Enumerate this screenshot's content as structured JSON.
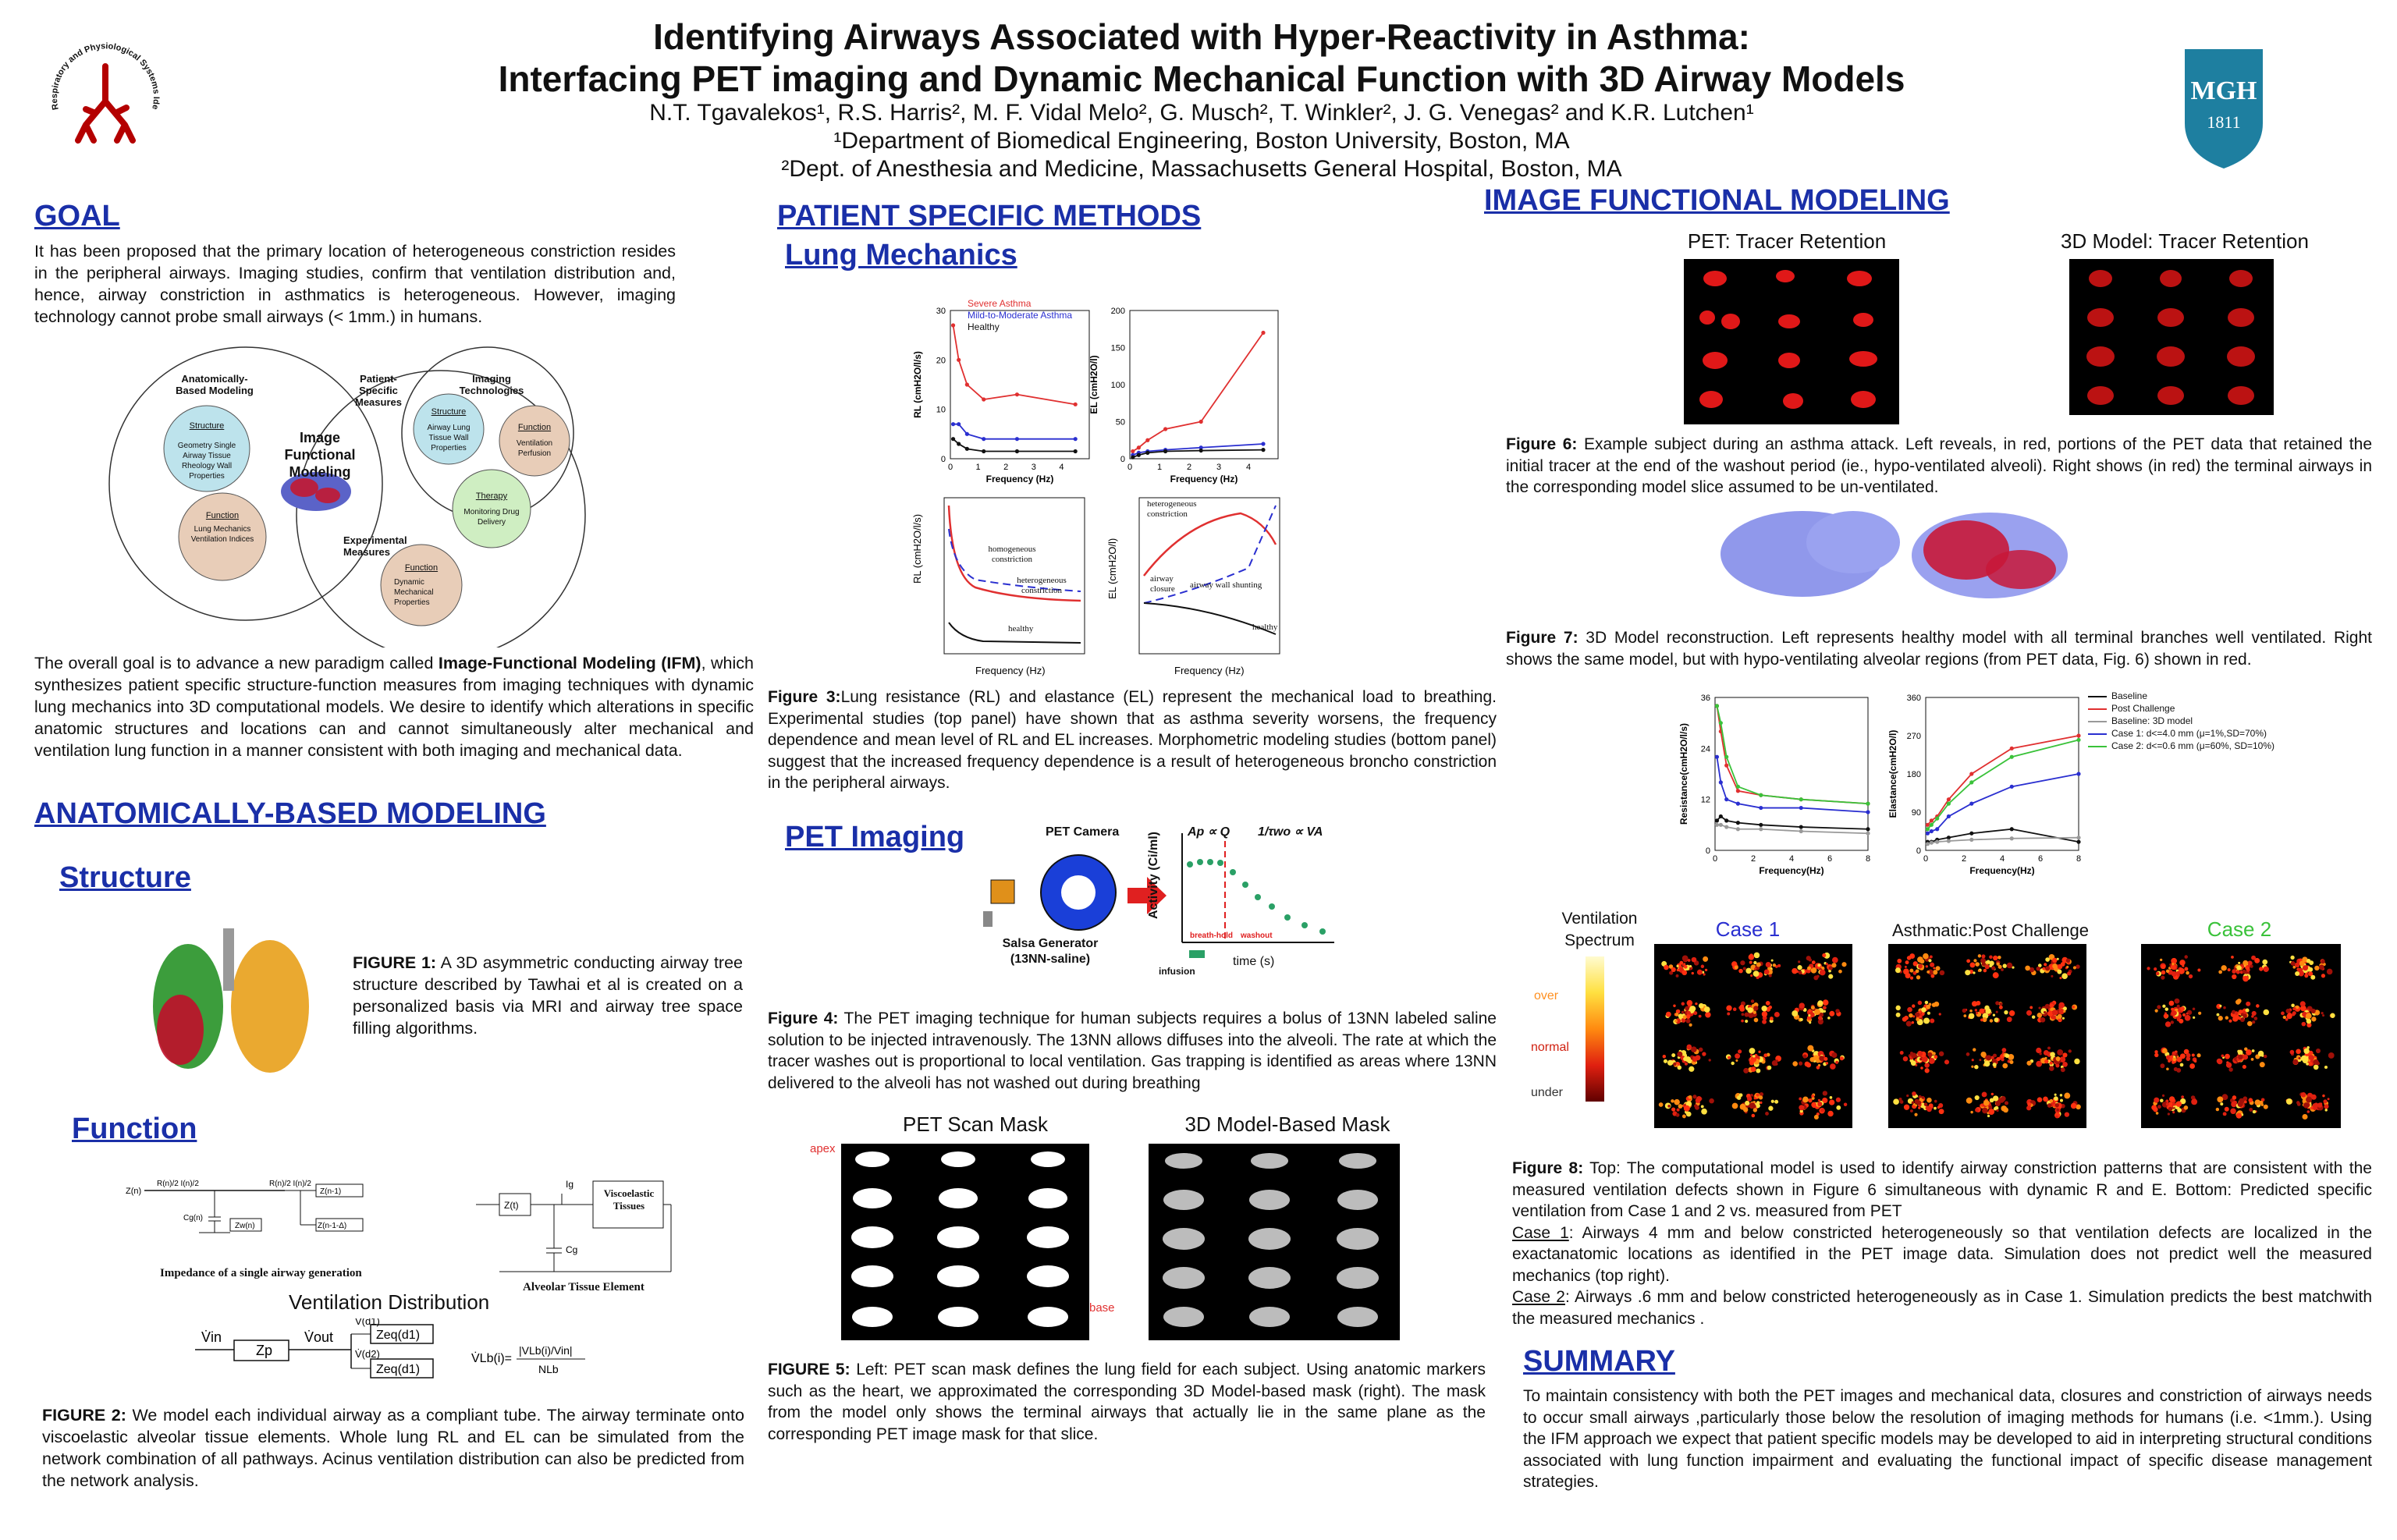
{
  "header": {
    "title_line1": "Identifying Airways Associated with Hyper-Reactivity in Asthma:",
    "title_line2": "Interfacing PET imaging and Dynamic Mechanical Function with 3D Airway Models",
    "authors": "N.T. Tgavalekos¹, R.S. Harris², M. F. Vidal Melo², G. Musch², T. Winkler², J. G. Venegas² and K.R. Lutchen¹",
    "affil1": "¹Department of Biomedical Engineering, Boston University, Boston, MA",
    "affil2": "²Dept. of Anesthesia and Medicine, Massachusetts General Hospital, Boston, MA",
    "left_logo_text": "Respiratory and Physiological Systems Identification Laboratory",
    "mgh_text": "MGH",
    "mgh_year": "1811"
  },
  "goal": {
    "heading": "GOAL",
    "p1": "It has been proposed that the primary location of heterogeneous constriction resides in the peripheral airways.   Imaging studies, confirm that ventilation distribution and, hence, airway constriction in asthmatics is heterogeneous. However, imaging technology cannot probe small airways (< 1mm.) in humans.",
    "venn": {
      "anat": "Anatomically-Based Modeling",
      "patient": "Patient-Specific Measures",
      "imaging": "Imaging Technologies",
      "experimental": "Experimental Measures",
      "center": "Image Functional Modeling",
      "structure_t": "Structure",
      "structure_b": "Geometry Single Airway Tissue Rheology Wall Properties",
      "function_t": "Function",
      "function_b": "Lung Mechanics Ventilation  Indices",
      "istructure_t": "Structure",
      "istructure_b": "Airway Lung Tissue Wall Properties",
      "ifunction_t": "Function",
      "ifunction_b": "Ventilation Perfusion",
      "therapy_t": "Therapy",
      "therapy_b": "Monitoring Drug Delivery",
      "efunction_t": "Function",
      "efunction_b": "Dynamic Mechanical Properties"
    },
    "p2_pre": "The overall goal is to advance a new paradigm called ",
    "p2_bold": "Image-Functional Modeling (IFM)",
    "p2_post": ", which synthesizes patient specific structure-function measures from imaging techniques with dynamic lung mechanics into 3D computational models. We desire to identify  which alterations in specific anatomic structures and locations can and cannot simultaneously alter mechanical and ventilation lung function in a manner consistent with both imaging and mechanical data."
  },
  "anat": {
    "heading": "ANATOMICALLY-BASED MODELING",
    "structure": "Structure",
    "fig1_bold": "FIGURE 1:",
    "fig1": " A 3D asymmetric conducting airway tree structure described by Tawhai et al is created on a personalized basis via MRI and airway tree space filling algorithms.",
    "function": "Function",
    "impedance_label": "Impedance of a single airway generation",
    "tissue_label": "Alveolar Tissue Element",
    "visco": "Viscoelastic Tissues",
    "vent_title": "Ventilation Distribution",
    "fig2_bold": "FIGURE 2:",
    "fig2": " We model each individual airway as a compliant tube. The airway terminate onto viscoelastic alveolar tissue elements.  Whole lung RL and EL can be simulated from the network combination of all pathways.  Acinus ventilation distribution can also be predicted from the network analysis."
  },
  "methods": {
    "heading": "PATIENT SPECIFIC METHODS",
    "lung_mech": "Lung Mechanics",
    "legend": [
      "Severe Asthma",
      "Mild-to-Moderate Asthma",
      "Healthy"
    ],
    "freq_label": "Frequency (Hz)",
    "rl_label": "RL (cmH2O/l/s)",
    "el_label": "EL (cmH2O/l)",
    "fig3_bold": "Figure 3:",
    "fig3": "Lung resistance (RL) and elastance (EL) represent the mechanical load to breathing. Experimental studies (top panel) have shown that as asthma severity worsens, the frequency dependence and mean level of RL and EL increases.  Morphometric modeling studies (bottom panel) suggest that the increased frequency dependence is a result of heterogeneous broncho constriction in the  peripheral airways.",
    "ann_homog": "homogeneous constriction",
    "ann_heter": "heterogeneous constriction",
    "ann_healthy": "healthy",
    "ann_airway": "airway closure",
    "ann_shunt": "airway wall shunting",
    "pet_heading": "PET Imaging",
    "pet_camera": "PET Camera",
    "salsa": "Salsa Generator (13NN-saline)",
    "activity": "Activity (Ci/ml)",
    "time": "time (s)",
    "breath_hold": "breath-hold",
    "washout": "washout",
    "infusion": "infusion",
    "eq1": "Ap ∝ Q",
    "eq2": "1/τwo ∝ VA",
    "fig4_bold": "Figure 4:",
    "fig4": "  The PET imaging technique for human subjects requires a bolus of 13NN labeled saline solution to be injected intravenously. The 13NN allows diffuses into the alveoli. The rate at which the tracer washes out is proportional to local ventilation.   Gas trapping is identified as areas where 13NN delivered to the alveoli has not washed out during breathing",
    "mask_left": "PET Scan Mask",
    "mask_right": "3D Model-Based Mask",
    "apex": "apex",
    "base": "base",
    "fig5_bold": "FIGURE 5:",
    "fig5": " Left: PET scan mask defines the lung field for each subject. Using anatomic markers such as the heart, we approximated the corresponding 3D Model-based mask (right). The mask from the model only shows the terminal airways that actually lie in the same plane as the corresponding PET image mask for that slice."
  },
  "ifm": {
    "heading": "IMAGE FUNCTIONAL MODELING",
    "pet_title": "PET: Tracer Retention",
    "model_title": "3D Model: Tracer Retention",
    "fig6_bold": "Figure 6:",
    "fig6": "  Example subject during an asthma attack. Left reveals, in red, portions of the PET data that retained the initial tracer at the end of the washout period (ie., hypo-ventilated alveoli). Right shows (in red) the  terminal airways in the corresponding model slice assumed to be un-ventilated.",
    "fig7_bold": "Figure 7:",
    "fig7": " 3D Model reconstruction. Left represents healthy model with all terminal branches well ventilated. Right shows the same model, but with hypo-ventilating alveolar regions (from PET data, Fig. 6) shown in red.",
    "res_label": "Resistance(cmH2O/l/s)",
    "ela_label": "Elastance(cmH2O/l)",
    "freq_label": "Frequency(Hz)",
    "legend": [
      "Baseline",
      "Post Challenge",
      "Baseline: 3D model",
      "Case 1: d<=4.0 mm (μ=1%,SD=70%)",
      "Case 2: d<=0.6 mm (μ=60%, SD=10%)"
    ],
    "spectrum": "Ventilation Spectrum",
    "over": "over",
    "normal": "normal",
    "under": "under",
    "case1": "Case 1",
    "asthmatic": "Asthmatic:Post  Challenge",
    "case2": "Case 2",
    "fig8_bold": "Figure 8:",
    "fig8": " Top: The computational model is used to identify airway constriction patterns that are consistent with the measured ventilation defects shown in Figure 6 simultaneous with  dynamic R and E. Bottom: Predicted specific ventilation from Case 1 and 2 vs. measured from PET",
    "case1_u": "Case 1",
    "case1_t": ": Airways 4 mm and below constricted heterogeneously so that ventilation defects are localized in the exactanatomic locations as identified in the PET image data. Simulation does not predict well the measured mechanics (top right).",
    "case2_u": "Case 2",
    "case2_t": ": Airways .6 mm and below constricted heterogeneously as in Case 1. Simulation predicts the best matchwith the measured mechanics ."
  },
  "summary": {
    "heading": "SUMMARY",
    "text": "To maintain consistency with both the PET images and mechanical data, closures and constriction of airways needs to occur small airways ,particularly those below the resolution of imaging methods for humans (i.e. <1mm.). Using the IFM approach we expect that patient specific models may be developed to aid in interpreting structural conditions associated with lung function impairment and evaluating the functional impact of specific disease management strategies."
  },
  "colors": {
    "heading": "#1a2fa8",
    "severe": "#e03030",
    "mild": "#2a2fd0",
    "healthy": "#111111"
  },
  "chart_data": [
    {
      "type": "line",
      "xlabel": "Frequency (Hz)",
      "ylabel": "RL (cmH2O/l/s)",
      "x": [
        0.1,
        0.3,
        0.6,
        1.2,
        2.4,
        4.5
      ],
      "series": [
        {
          "name": "Severe Asthma",
          "values": [
            27,
            20,
            15,
            12,
            13,
            11
          ]
        },
        {
          "name": "Mild-to-Moderate Asthma",
          "values": [
            7,
            7,
            5,
            4,
            4,
            4
          ]
        },
        {
          "name": "Healthy",
          "values": [
            4,
            3,
            2,
            1.5,
            1.5,
            1.5
          ]
        }
      ],
      "ylim": [
        0,
        30
      ]
    },
    {
      "type": "line",
      "xlabel": "Frequency (Hz)",
      "ylabel": "EL (cmH2O/l)",
      "x": [
        0.1,
        0.3,
        0.6,
        1.2,
        2.4,
        4.5
      ],
      "series": [
        {
          "name": "Severe Asthma",
          "values": [
            10,
            15,
            25,
            40,
            50,
            170
          ]
        },
        {
          "name": "Mild-to-Moderate Asthma",
          "values": [
            5,
            8,
            10,
            12,
            15,
            20
          ]
        },
        {
          "name": "Healthy",
          "values": [
            2,
            5,
            8,
            10,
            11,
            12
          ]
        }
      ],
      "ylim": [
        0,
        200
      ]
    },
    {
      "type": "line",
      "xlabel": "Frequency(Hz)",
      "ylabel": "Resistance(cmH2O/l/s)",
      "x": [
        0.1,
        0.3,
        0.6,
        1.2,
        2.4,
        4.5,
        8
      ],
      "series": [
        {
          "name": "Baseline",
          "values": [
            7,
            8,
            7,
            6.5,
            6,
            5.5,
            5
          ]
        },
        {
          "name": "Post Challenge",
          "values": [
            34,
            28,
            20,
            14,
            13,
            12,
            11
          ]
        },
        {
          "name": "Baseline: 3D model",
          "values": [
            6,
            6,
            5.5,
            5,
            5,
            4.5,
            4
          ]
        },
        {
          "name": "Case 1: d<=4.0 mm (μ=1%,SD=70%)",
          "values": [
            22,
            16,
            12,
            11,
            10,
            10,
            9
          ]
        },
        {
          "name": "Case 2: d<=0.6 mm (μ=60%, SD=10%)",
          "values": [
            34,
            30,
            22,
            15,
            13,
            12,
            11
          ]
        }
      ],
      "ylim": [
        0,
        36
      ]
    },
    {
      "type": "line",
      "xlabel": "Frequency(Hz)",
      "ylabel": "Elastance(cmH2O/l)",
      "x": [
        0.1,
        0.3,
        0.6,
        1.2,
        2.4,
        4.5,
        8
      ],
      "series": [
        {
          "name": "Baseline",
          "values": [
            20,
            20,
            25,
            30,
            40,
            50,
            20
          ]
        },
        {
          "name": "Post Challenge",
          "values": [
            60,
            70,
            80,
            120,
            180,
            240,
            270
          ]
        },
        {
          "name": "Baseline: 3D model",
          "values": [
            15,
            18,
            20,
            22,
            25,
            28,
            30
          ]
        },
        {
          "name": "Case 1: d<=4.0 mm (μ=1%,SD=70%)",
          "values": [
            40,
            45,
            50,
            80,
            110,
            150,
            180
          ]
        },
        {
          "name": "Case 2: d<=0.6 mm (μ=60%, SD=10%)",
          "values": [
            50,
            60,
            75,
            110,
            160,
            220,
            260
          ]
        }
      ],
      "ylim": [
        0,
        360
      ]
    }
  ]
}
